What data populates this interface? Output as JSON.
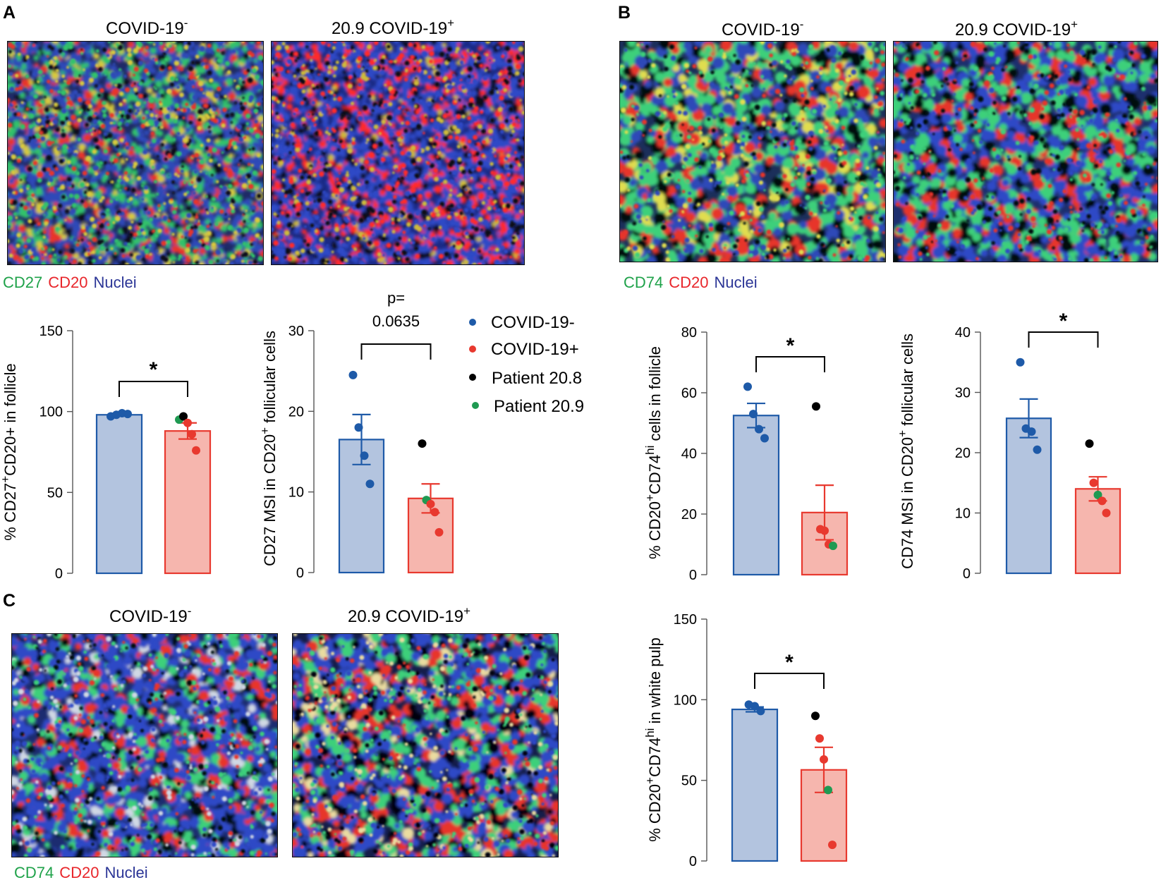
{
  "figure": {
    "panels": [
      {
        "letter": "A"
      },
      {
        "letter": "B"
      },
      {
        "letter": "C"
      }
    ]
  },
  "image_panels": [
    {
      "panel": "A",
      "left_title": "COVID-19",
      "left_sup": "-",
      "right_title": "20.9 COVID-19",
      "right_sup": "+",
      "stain": [
        {
          "text": "CD27",
          "color": "#1fa24a"
        },
        {
          "text": "CD20",
          "color": "#e8262b"
        },
        {
          "text": "Nuclei",
          "color": "#2b3596"
        }
      ]
    },
    {
      "panel": "B",
      "left_title": "COVID-19",
      "left_sup": "-",
      "right_title": "20.9 COVID-19",
      "right_sup": "+",
      "stain": [
        {
          "text": "CD74",
          "color": "#1fa24a"
        },
        {
          "text": "CD20",
          "color": "#e8262b"
        },
        {
          "text": "Nuclei",
          "color": "#2b3596"
        }
      ]
    },
    {
      "panel": "C",
      "left_title": "COVID-19",
      "left_sup": "-",
      "right_title": "20.9 COVID-19",
      "right_sup": "+",
      "stain": [
        {
          "text": "CD74",
          "color": "#1fa24a"
        },
        {
          "text": "CD20",
          "color": "#e8262b"
        },
        {
          "text": "Nuclei",
          "color": "#2b3596"
        }
      ]
    }
  ],
  "legend": {
    "items": [
      {
        "label": "COVID-19-",
        "color": "#1e5aa8"
      },
      {
        "label": "COVID-19+",
        "color": "#e8392f"
      },
      {
        "label": "Patient 20.8",
        "color": "#000000"
      },
      {
        "label": "Patient 20.9",
        "color": "#1f9a52"
      }
    ]
  },
  "colors": {
    "neg_bar_fill": "#b3c4df",
    "neg_bar_stroke": "#1e5aa8",
    "pos_bar_fill": "#f6b6ae",
    "pos_bar_stroke": "#e8392f"
  },
  "chart_data": [
    {
      "type": "bar",
      "panel": "A",
      "ylabel": "% CD27+CD20+ in follicle",
      "ylim": [
        0,
        150
      ],
      "yticks": [
        0,
        50,
        100,
        150
      ],
      "categories": [
        "COVID-19-",
        "COVID-19+"
      ],
      "means": [
        98,
        88
      ],
      "sems": [
        0.8,
        5
      ],
      "points": [
        [
          {
            "y": 97,
            "g": "neg"
          },
          {
            "y": 98,
            "g": "neg"
          },
          {
            "y": 99,
            "g": "neg"
          },
          {
            "y": 98.5,
            "g": "neg"
          }
        ],
        [
          {
            "y": 95,
            "g": "p209"
          },
          {
            "y": 97,
            "g": "p208"
          },
          {
            "y": 93,
            "g": "pos"
          },
          {
            "y": 86,
            "g": "pos"
          },
          {
            "y": 76,
            "g": "pos"
          }
        ]
      ],
      "annotation": "*",
      "ylabel_parts": [
        {
          "t": "% CD27"
        },
        {
          "t": "+",
          "sup": true
        },
        {
          "t": "CD20+ in follicle"
        }
      ]
    },
    {
      "type": "bar",
      "panel": "A",
      "ylabel": "CD27 MSI in CD20+ follicular cells",
      "ylim": [
        0,
        30
      ],
      "yticks": [
        0,
        10,
        20,
        30
      ],
      "categories": [
        "COVID-19-",
        "COVID-19+"
      ],
      "means": [
        16.5,
        9.2
      ],
      "sems": [
        3.1,
        1.8
      ],
      "points": [
        [
          {
            "y": 24.5,
            "g": "neg"
          },
          {
            "y": 18,
            "g": "neg"
          },
          {
            "y": 14.5,
            "g": "neg"
          },
          {
            "y": 11,
            "g": "neg"
          }
        ],
        [
          {
            "y": 16,
            "g": "p208"
          },
          {
            "y": 9,
            "g": "p209"
          },
          {
            "y": 8.5,
            "g": "pos"
          },
          {
            "y": 7.5,
            "g": "pos"
          },
          {
            "y": 5,
            "g": "pos"
          }
        ]
      ],
      "annotation": "p=",
      "annotation2": "0.0635",
      "ylabel_parts": [
        {
          "t": "CD27 MSI in CD20"
        },
        {
          "t": "+",
          "sup": true
        },
        {
          "t": " follicular cells"
        }
      ]
    },
    {
      "type": "bar",
      "panel": "B",
      "ylabel": "% CD20+CD74hi cells in follicle",
      "ylim": [
        0,
        80
      ],
      "yticks": [
        0,
        20,
        40,
        60,
        80
      ],
      "categories": [
        "COVID-19-",
        "COVID-19+"
      ],
      "means": [
        52.5,
        20.5
      ],
      "sems": [
        4,
        9
      ],
      "points": [
        [
          {
            "y": 62,
            "g": "neg"
          },
          {
            "y": 53,
            "g": "neg"
          },
          {
            "y": 48,
            "g": "neg"
          },
          {
            "y": 45,
            "g": "neg"
          }
        ],
        [
          {
            "y": 55.5,
            "g": "p208"
          },
          {
            "y": 15,
            "g": "pos"
          },
          {
            "y": 14.5,
            "g": "pos"
          },
          {
            "y": 10,
            "g": "pos"
          },
          {
            "y": 9.5,
            "g": "p209"
          }
        ]
      ],
      "annotation": "*",
      "ylabel_parts": [
        {
          "t": "% CD20"
        },
        {
          "t": "+",
          "sup": true
        },
        {
          "t": "CD74"
        },
        {
          "t": "hi",
          "sup": true
        },
        {
          "t": " cells in follicle"
        }
      ]
    },
    {
      "type": "bar",
      "panel": "B",
      "ylabel": "CD74 MSI in CD20+ follicular cells",
      "ylim": [
        0,
        40
      ],
      "yticks": [
        0,
        10,
        20,
        30,
        40
      ],
      "categories": [
        "COVID-19-",
        "COVID-19+"
      ],
      "means": [
        25.7,
        14
      ],
      "sems": [
        3.2,
        2
      ],
      "points": [
        [
          {
            "y": 35,
            "g": "neg"
          },
          {
            "y": 24,
            "g": "neg"
          },
          {
            "y": 23.5,
            "g": "neg"
          },
          {
            "y": 20.5,
            "g": "neg"
          }
        ],
        [
          {
            "y": 21.5,
            "g": "p208"
          },
          {
            "y": 15,
            "g": "pos"
          },
          {
            "y": 13,
            "g": "p209"
          },
          {
            "y": 12,
            "g": "pos"
          },
          {
            "y": 10,
            "g": "pos"
          }
        ]
      ],
      "annotation": "*",
      "ylabel_parts": [
        {
          "t": "CD74 MSI in CD20"
        },
        {
          "t": "+",
          "sup": true
        },
        {
          "t": " follicular cells"
        }
      ]
    },
    {
      "type": "bar",
      "panel": "C",
      "ylabel": "% CD20+CD74hi in white pulp",
      "ylim": [
        0,
        150
      ],
      "yticks": [
        0,
        50,
        100,
        150
      ],
      "categories": [
        "COVID-19-",
        "COVID-19+"
      ],
      "means": [
        94,
        56.5
      ],
      "sems": [
        1.5,
        14
      ],
      "points": [
        [
          {
            "y": 97,
            "g": "neg"
          },
          {
            "y": 96,
            "g": "neg"
          },
          {
            "y": 93,
            "g": "neg"
          }
        ],
        [
          {
            "y": 90,
            "g": "p208"
          },
          {
            "y": 76,
            "g": "pos"
          },
          {
            "y": 63,
            "g": "pos"
          },
          {
            "y": 44,
            "g": "p209"
          },
          {
            "y": 10,
            "g": "pos"
          }
        ]
      ],
      "annotation": "*",
      "ylabel_parts": [
        {
          "t": "% CD20"
        },
        {
          "t": "+",
          "sup": true
        },
        {
          "t": "CD74"
        },
        {
          "t": "hi",
          "sup": true
        },
        {
          "t": " in white pulp"
        }
      ]
    }
  ]
}
